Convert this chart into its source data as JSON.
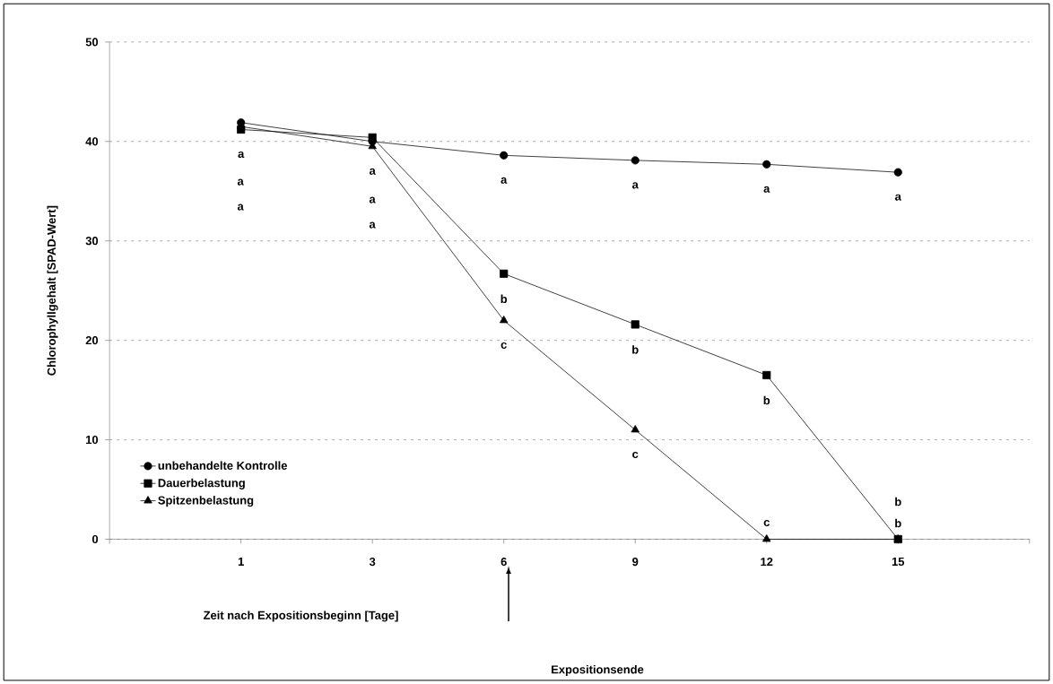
{
  "chart_data": {
    "type": "line",
    "xlabel": "Zeit nach Expositionsbeginn [Tage]",
    "ylabel": "Chlorophyllgehalt [SPAD-Wert]",
    "categories": [
      null,
      "1",
      "3",
      "6",
      "9",
      "12",
      "15",
      null
    ],
    "series": [
      {
        "name": "unbehandelte Kontrolle",
        "color": "#000000",
        "marker": "circle",
        "values": [
          null,
          41.9,
          40.0,
          38.6,
          38.1,
          37.7,
          36.9,
          null
        ]
      },
      {
        "name": "Dauerbelastung",
        "color": "#000000",
        "marker": "square",
        "values": [
          null,
          41.2,
          40.4,
          26.7,
          21.6,
          16.5,
          0,
          null
        ]
      },
      {
        "name": "Spitzenbelastung",
        "color": "#000000",
        "marker": "triangle",
        "values": [
          null,
          41.5,
          39.5,
          22.0,
          11.0,
          0,
          0,
          null
        ]
      }
    ],
    "ylim": [
      0,
      50
    ],
    "yticks": [
      0,
      10,
      20,
      30,
      40,
      50
    ],
    "grid": "y",
    "legend": "bottom left",
    "line_style": "solid",
    "annotations": [
      {
        "text": "a",
        "x": "1",
        "y": 41.2
      },
      {
        "text": "a",
        "x": "3",
        "y": 39.5
      },
      {
        "text": "a",
        "x": "6",
        "y": 38.6
      },
      {
        "text": "b",
        "x": "6",
        "y": 26.7
      },
      {
        "text": "c",
        "x": "6",
        "y": 22.0
      },
      {
        "text": "a",
        "x": "9",
        "y": 38.1
      },
      {
        "text": "b",
        "x": "9",
        "y": 21.6
      },
      {
        "text": "c",
        "x": "9",
        "y": 11.0
      },
      {
        "text": "a",
        "x": "12",
        "y": 37.7
      },
      {
        "text": "b",
        "x": "12",
        "y": 16.5
      },
      {
        "text": "c",
        "x": "12",
        "y": 0
      },
      {
        "text": "a",
        "x": "15",
        "y": 36.9
      },
      {
        "text": "b",
        "x": "15",
        "y": 0
      },
      {
        "text": "b",
        "x": "15",
        "y": 0
      },
      "a",
      "a",
      "a",
      "a",
      "Expositionsende"
    ]
  }
}
